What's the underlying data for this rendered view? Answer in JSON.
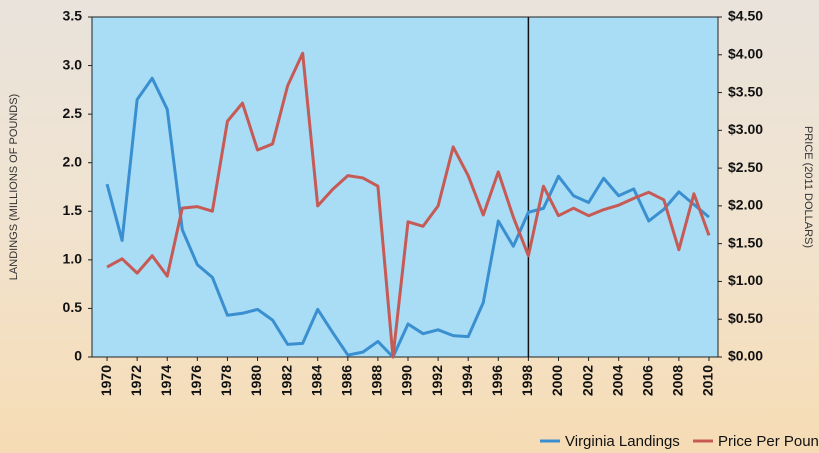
{
  "chart_data": {
    "type": "line",
    "y_label": "LANDINGS (MILLIONS OF POUNDS)",
    "y2_label": "PRICE (2011 DOLLARS)",
    "x": [
      1970,
      1971,
      1972,
      1973,
      1974,
      1975,
      1976,
      1977,
      1978,
      1979,
      1980,
      1981,
      1982,
      1983,
      1984,
      1985,
      1986,
      1987,
      1988,
      1989,
      1990,
      1991,
      1992,
      1993,
      1994,
      1995,
      1996,
      1997,
      1998,
      1999,
      2000,
      2001,
      2002,
      2003,
      2004,
      2005,
      2006,
      2007,
      2008,
      2009,
      2010
    ],
    "xlim": [
      1969,
      2010.6
    ],
    "xticks": [
      1970,
      1972,
      1974,
      1976,
      1978,
      1980,
      1982,
      1984,
      1986,
      1988,
      1990,
      1992,
      1994,
      1996,
      1998,
      2000,
      2002,
      2004,
      2006,
      2008,
      2010
    ],
    "ylim": [
      0,
      3.5
    ],
    "yticks": [
      0,
      0.5,
      {
        "value": 1,
        "label": "1.0"
      },
      1.5,
      {
        "value": 2,
        "label": "2.0"
      },
      2.5,
      {
        "value": 3,
        "label": "3.0"
      },
      3.5
    ],
    "y2lim": [
      0,
      4.5
    ],
    "y2ticks": [
      {
        "value": 0,
        "label": "$0.00"
      },
      {
        "value": 0.5,
        "label": "$0.50"
      },
      {
        "value": 1,
        "label": "$1.00"
      },
      {
        "value": 1.5,
        "label": "$1.50"
      },
      {
        "value": 2,
        "label": "$2.00"
      },
      {
        "value": 2.5,
        "label": "$2.50"
      },
      {
        "value": 3,
        "label": "$3.00"
      },
      {
        "value": 3.5,
        "label": "$3.50"
      },
      {
        "value": 4,
        "label": "$4.00"
      },
      {
        "value": 4.5,
        "label": "$4.50"
      }
    ],
    "vline": 1998,
    "grid": false,
    "legend": "bottom",
    "series": [
      {
        "name": "Virginia Landings",
        "color": "#3a8fd0",
        "axis": "y",
        "values": [
          1.78,
          1.2,
          2.65,
          2.87,
          2.55,
          1.31,
          0.95,
          0.82,
          0.43,
          0.45,
          0.49,
          0.38,
          0.13,
          0.14,
          0.49,
          0.25,
          0.02,
          0.05,
          0.16,
          0.0,
          0.34,
          0.24,
          0.28,
          0.22,
          0.21,
          0.56,
          1.4,
          1.14,
          1.49,
          1.53,
          1.86,
          1.66,
          1.59,
          1.84,
          1.66,
          1.73,
          1.4,
          1.52,
          1.7,
          1.57,
          1.44
        ]
      },
      {
        "name": "Price Per Pound",
        "color": "#c65a55",
        "axis": "y2",
        "values": [
          1.19,
          1.3,
          1.11,
          1.34,
          1.07,
          1.97,
          1.99,
          1.93,
          3.12,
          3.36,
          2.74,
          2.82,
          3.59,
          4.02,
          2.0,
          2.22,
          2.4,
          2.37,
          2.26,
          0.0,
          1.79,
          1.73,
          2.0,
          2.78,
          2.4,
          1.88,
          2.45,
          1.85,
          1.34,
          2.26,
          1.87,
          1.97,
          1.87,
          1.95,
          2.01,
          2.1,
          2.18,
          2.08,
          1.42,
          2.16,
          1.61
        ]
      }
    ]
  }
}
